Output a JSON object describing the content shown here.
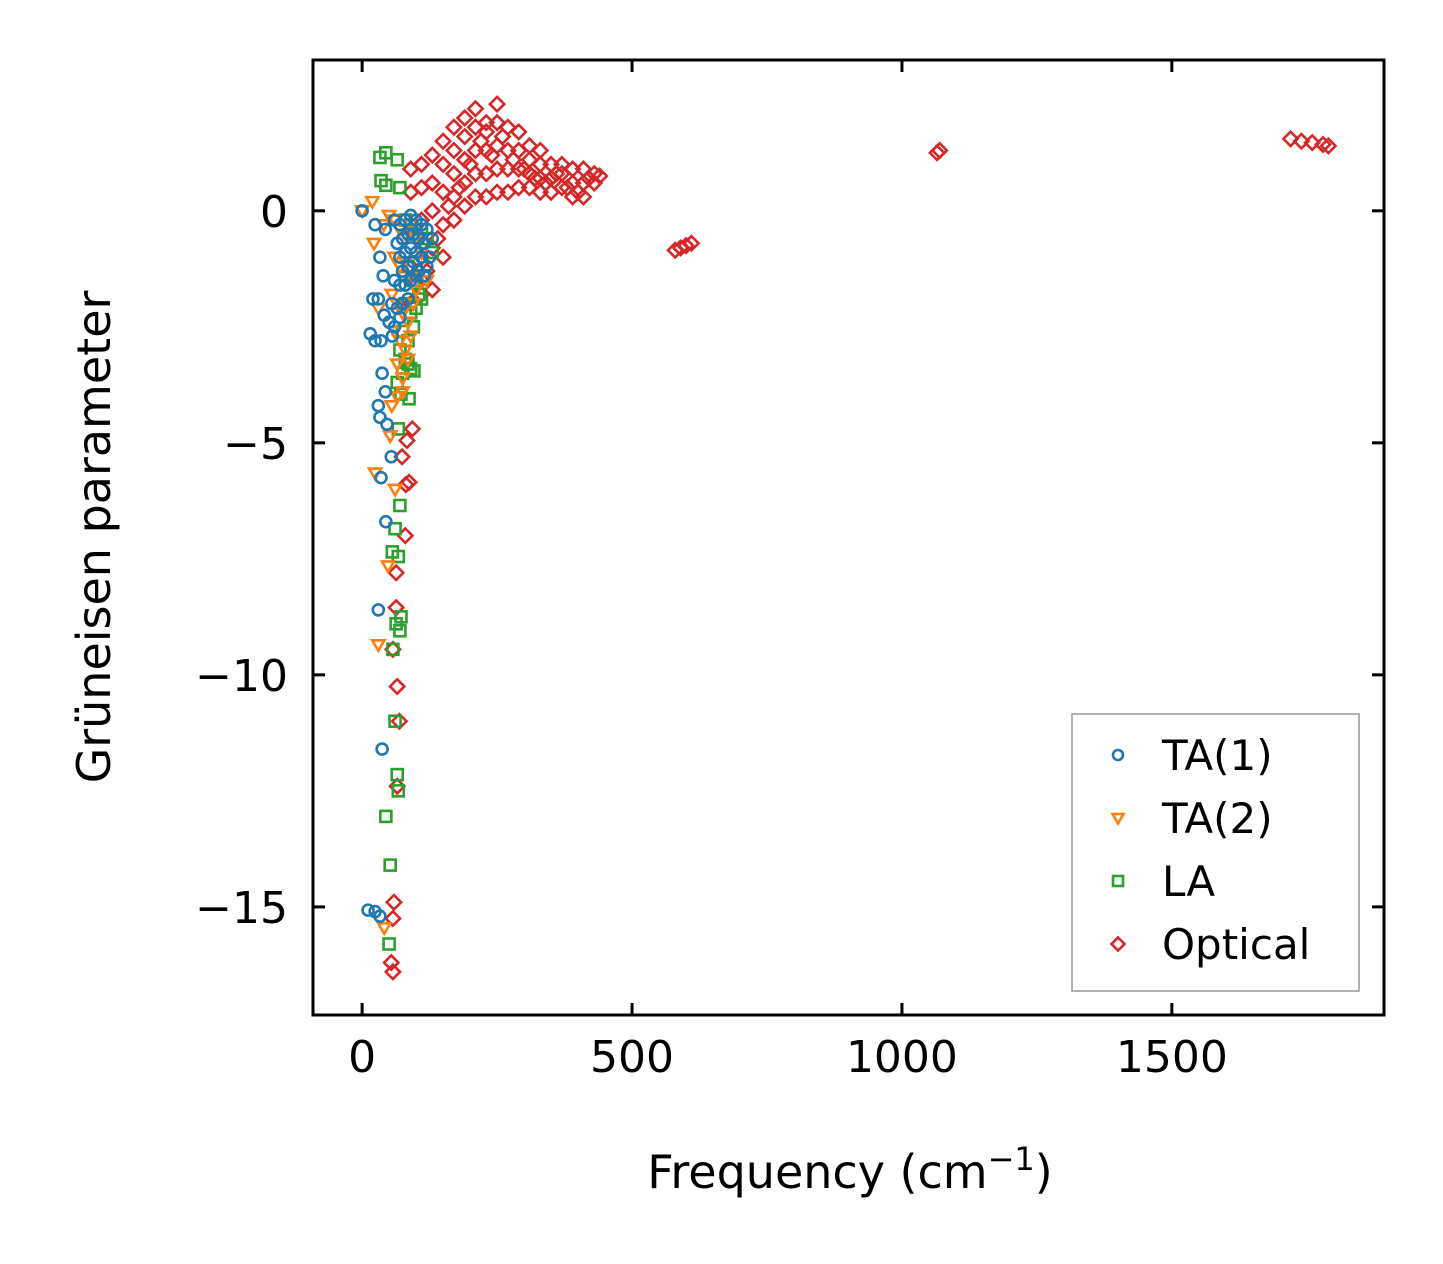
{
  "chart_data": {
    "type": "scatter",
    "title": "",
    "xlabel": "Frequency (cm",
    "xlabel_sup": "−1",
    "xlabel_end": ")",
    "ylabel": "Grüneisen parameter",
    "xlim": [
      -91,
      1893
    ],
    "ylim": [
      -17.33,
      3.25
    ],
    "xticks": [
      0,
      500,
      1000,
      1500
    ],
    "xtick_labels": [
      "0",
      "500",
      "1000",
      "1500"
    ],
    "yticks": [
      0,
      -5,
      -10,
      -15
    ],
    "ytick_labels": [
      "0",
      "−5",
      "−10",
      "−15"
    ],
    "grid": false,
    "legend_placement": "lower-right",
    "series": [
      {
        "name": "TA(1)",
        "marker": "circle",
        "color": "#1f77b4",
        "x": [
          0,
          11,
          24,
          33,
          37,
          30,
          44,
          35,
          54,
          30,
          33,
          46,
          37,
          43,
          15,
          24,
          35,
          56,
          20,
          30,
          41,
          39,
          33,
          43,
          24,
          60,
          70,
          80,
          90,
          100,
          110,
          120,
          130,
          65,
          75,
          85,
          95,
          105,
          115,
          125,
          70,
          80,
          90,
          100,
          110,
          120,
          75,
          85,
          95,
          105,
          115,
          60,
          70,
          80,
          90,
          100,
          55,
          65,
          75,
          85,
          50,
          60,
          70
        ],
        "y": [
          0,
          -15.07,
          -15.1,
          -15.2,
          -11.6,
          -8.6,
          -6.7,
          -5.75,
          -5.3,
          -4.2,
          -4.45,
          -4.6,
          -3.5,
          -3.9,
          -2.65,
          -2.8,
          -2.8,
          -2.7,
          -1.9,
          -1.9,
          -2.25,
          -1.4,
          -1.0,
          -0.4,
          -0.3,
          -0.2,
          -0.3,
          -0.2,
          -0.1,
          -0.2,
          -0.3,
          -0.4,
          -0.6,
          -0.7,
          -0.6,
          -0.5,
          -0.5,
          -0.6,
          -0.7,
          -1.0,
          -1.0,
          -0.9,
          -0.8,
          -0.9,
          -1.0,
          -1.2,
          -1.3,
          -1.2,
          -1.1,
          -1.3,
          -1.4,
          -1.5,
          -1.6,
          -1.6,
          -1.5,
          -1.4,
          -2.0,
          -2.1,
          -2.0,
          -1.9,
          -2.4,
          -2.5,
          -2.3
        ]
      },
      {
        "name": "TA(2)",
        "marker": "triangle-down",
        "color": "#ff7f0e",
        "x": [
          0,
          19,
          48,
          30,
          24,
          41,
          61,
          52,
          22,
          30,
          40,
          50,
          60,
          70,
          80,
          90,
          100,
          110,
          120,
          60,
          70,
          80,
          90,
          100,
          55,
          65,
          75,
          85,
          95,
          60,
          70,
          80,
          90,
          65,
          75,
          85,
          55,
          65,
          75
        ],
        "y": [
          0,
          0.2,
          -7.65,
          -9.35,
          -5.65,
          -15.45,
          -6.0,
          -4.85,
          -0.7,
          -2.1,
          -0.3,
          -0.1,
          -0.2,
          -0.4,
          -0.5,
          -0.3,
          -0.6,
          -0.9,
          -1.5,
          -1.0,
          -1.2,
          -1.1,
          -1.4,
          -1.7,
          -1.8,
          -2.0,
          -2.2,
          -2.4,
          -2.0,
          -2.6,
          -2.8,
          -3.0,
          -2.7,
          -3.3,
          -3.6,
          -3.2,
          -4.2,
          -4.0,
          -3.9
        ]
      },
      {
        "name": "LA",
        "marker": "square",
        "color": "#2ca02c",
        "x": [
          33,
          44,
          65,
          35,
          44,
          70,
          52,
          44,
          50,
          65,
          67,
          61,
          57,
          70,
          63,
          72,
          56,
          67,
          61,
          70,
          67,
          72,
          87,
          96,
          80,
          90,
          100,
          110,
          120,
          130,
          85,
          95,
          105,
          115,
          80,
          90,
          100,
          110,
          75,
          85,
          95,
          70,
          80,
          90,
          65,
          75,
          85
        ],
        "y": [
          1.15,
          1.25,
          1.1,
          0.65,
          0.55,
          0.5,
          -14.1,
          -13.05,
          -15.8,
          -12.15,
          -12.5,
          -11.0,
          -9.45,
          -9.05,
          -8.9,
          -8.75,
          -7.35,
          -7.45,
          -6.85,
          -6.35,
          -4.7,
          -3.95,
          -4.05,
          -3.45,
          -0.2,
          -0.3,
          -0.5,
          -0.4,
          -0.6,
          -0.9,
          -1.2,
          -1.5,
          -1.8,
          -1.4,
          -2.0,
          -2.2,
          -2.1,
          -1.9,
          -2.6,
          -2.8,
          -2.5,
          -3.0,
          -3.2,
          -3.4,
          -3.7,
          -3.5,
          -3.3
        ]
      },
      {
        "name": "Optical",
        "marker": "diamond",
        "color": "#d62728",
        "x": [
          57,
          54,
          57,
          59,
          65,
          69,
          65,
          57,
          63,
          63,
          80,
          81,
          87,
          74,
          83,
          93,
          90,
          90,
          90,
          90,
          90,
          110,
          110,
          110,
          110,
          110,
          130,
          130,
          130,
          130,
          130,
          150,
          150,
          150,
          150,
          150,
          170,
          170,
          170,
          170,
          170,
          190,
          190,
          190,
          190,
          190,
          210,
          210,
          210,
          210,
          210,
          230,
          230,
          230,
          230,
          230,
          250,
          250,
          250,
          250,
          250,
          270,
          270,
          270,
          270,
          290,
          290,
          290,
          290,
          310,
          310,
          310,
          310,
          330,
          330,
          330,
          330,
          350,
          350,
          350,
          370,
          370,
          370,
          390,
          390,
          390,
          410,
          410,
          410,
          430,
          430,
          100,
          120,
          140,
          160,
          180,
          200,
          220,
          240,
          260,
          280,
          300,
          320,
          340,
          360,
          380,
          400,
          420,
          440,
          580,
          590,
          600,
          610,
          1065,
          1070,
          1720,
          1740,
          1760,
          1780,
          1790
        ],
        "y": [
          -16.4,
          -16.2,
          -15.25,
          -14.9,
          -12.4,
          -11.0,
          -10.25,
          -9.45,
          -8.55,
          -7.8,
          -7.0,
          -5.9,
          -5.85,
          -5.3,
          -4.95,
          -4.7,
          -2.0,
          -1.2,
          -0.4,
          0.4,
          0.9,
          -1.8,
          -1.0,
          -0.2,
          0.5,
          1.0,
          -1.7,
          -0.8,
          0.0,
          0.6,
          1.2,
          -1.0,
          -0.3,
          0.4,
          1.0,
          1.5,
          -0.2,
          0.3,
          0.8,
          1.3,
          1.8,
          0.1,
          0.6,
          1.1,
          1.6,
          2.0,
          0.3,
          0.8,
          1.3,
          1.8,
          2.2,
          0.3,
          0.8,
          1.3,
          1.7,
          1.9,
          0.4,
          0.9,
          1.4,
          1.9,
          2.3,
          0.4,
          0.9,
          1.3,
          1.8,
          0.5,
          0.9,
          1.3,
          1.7,
          0.5,
          0.8,
          1.1,
          1.4,
          0.4,
          0.7,
          1.0,
          1.3,
          0.4,
          0.7,
          1.0,
          0.5,
          0.8,
          1.0,
          0.3,
          0.6,
          0.9,
          0.3,
          0.6,
          0.9,
          0.6,
          0.8,
          -1.6,
          -1.3,
          -0.6,
          0.1,
          0.5,
          1.0,
          1.5,
          1.2,
          1.6,
          1.1,
          0.9,
          0.7,
          0.6,
          0.8,
          0.5,
          0.4,
          0.7,
          0.75,
          -0.85,
          -0.8,
          -0.75,
          -0.7,
          1.25,
          1.3,
          1.55,
          1.5,
          1.47,
          1.43,
          1.4
        ]
      }
    ]
  }
}
